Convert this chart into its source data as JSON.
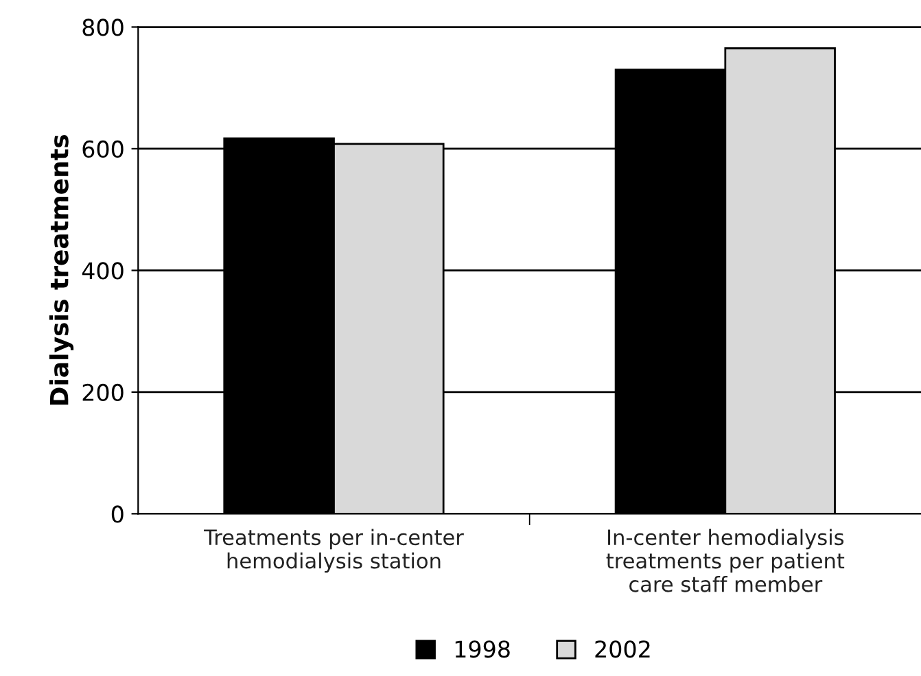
{
  "chart_data": {
    "type": "bar",
    "ylabel": "Dialysis treatments",
    "categories": [
      "Treatments per in-center\nhemodialysis station",
      "In-center hemodialysis\ntreatments per patient\ncare staff member"
    ],
    "series": [
      {
        "name": "1998",
        "color": "#000000",
        "values": [
          617,
          730
        ]
      },
      {
        "name": "2002",
        "color": "#d9d9d9",
        "values": [
          608,
          765
        ]
      }
    ],
    "ylim": [
      0,
      800
    ],
    "yticks": [
      0,
      200,
      400,
      600,
      800
    ],
    "grid": "y",
    "legend": "bottom"
  }
}
